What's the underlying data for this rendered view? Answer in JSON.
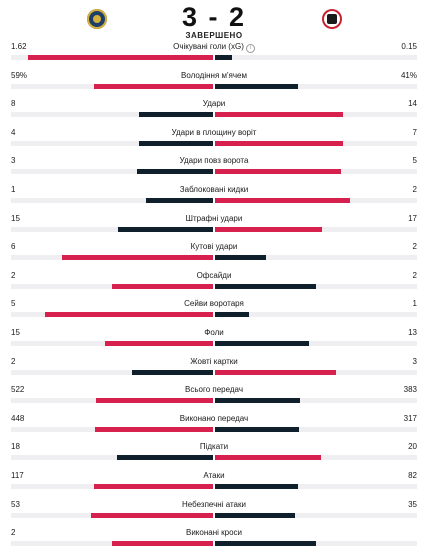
{
  "match": {
    "score": "3 - 2",
    "status": "ЗАВЕРШЕНО",
    "home_logo": "home-team-crest-icon",
    "away_logo": "away-team-crest-icon"
  },
  "colors": {
    "leader": "#d6214f",
    "trailer": "#0f1f2c",
    "track": "#efeff1"
  },
  "stats": [
    {
      "label": "Очікувані голи (xG)",
      "home": "1.62",
      "away": "0.15",
      "home_share": 0.915,
      "away_share": 0.085,
      "info": true
    },
    {
      "label": "Володіння м'ячем",
      "home": "59%",
      "away": "41%",
      "home_share": 0.59,
      "away_share": 0.41
    },
    {
      "label": "Удари",
      "home": "8",
      "away": "14",
      "home_share": 0.364,
      "away_share": 0.636
    },
    {
      "label": "Удари в площину воріт",
      "home": "4",
      "away": "7",
      "home_share": 0.364,
      "away_share": 0.636
    },
    {
      "label": "Удари повз ворота",
      "home": "3",
      "away": "5",
      "home_share": 0.375,
      "away_share": 0.625
    },
    {
      "label": "Заблоковані кидки",
      "home": "1",
      "away": "2",
      "home_share": 0.333,
      "away_share": 0.667
    },
    {
      "label": "Штрафні удари",
      "home": "15",
      "away": "17",
      "home_share": 0.469,
      "away_share": 0.531
    },
    {
      "label": "Кутові удари",
      "home": "6",
      "away": "2",
      "home_share": 0.75,
      "away_share": 0.25
    },
    {
      "label": "Офсайди",
      "home": "2",
      "away": "2",
      "home_share": 0.5,
      "away_share": 0.5
    },
    {
      "label": "Сейви воротаря",
      "home": "5",
      "away": "1",
      "home_share": 0.833,
      "away_share": 0.167
    },
    {
      "label": "Фоли",
      "home": "15",
      "away": "13",
      "home_share": 0.536,
      "away_share": 0.464
    },
    {
      "label": "Жовті картки",
      "home": "2",
      "away": "3",
      "home_share": 0.4,
      "away_share": 0.6
    },
    {
      "label": "Всього передач",
      "home": "522",
      "away": "383",
      "home_share": 0.577,
      "away_share": 0.423
    },
    {
      "label": "Виконано передач",
      "home": "448",
      "away": "317",
      "home_share": 0.586,
      "away_share": 0.414
    },
    {
      "label": "Підкати",
      "home": "18",
      "away": "20",
      "home_share": 0.474,
      "away_share": 0.526
    },
    {
      "label": "Атаки",
      "home": "117",
      "away": "82",
      "home_share": 0.588,
      "away_share": 0.412
    },
    {
      "label": "Небезпечні атаки",
      "home": "53",
      "away": "35",
      "home_share": 0.602,
      "away_share": 0.398
    },
    {
      "label": "Виконані кроси",
      "home": "2",
      "away": "",
      "home_share": 0.5,
      "away_share": 0.5
    }
  ]
}
